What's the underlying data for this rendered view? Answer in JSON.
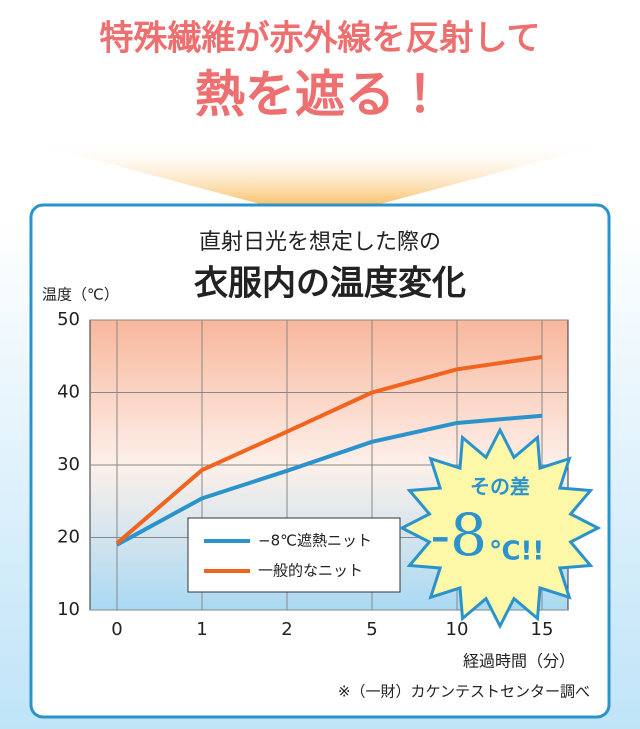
{
  "headline": [
    "特殊繊維が赤外線を反射して",
    "熱を遮る！"
  ],
  "chart_data": {
    "type": "line",
    "title": "直射日光を想定した際の",
    "subtitle": "衣服内の温度変化",
    "y_label": "温度（℃）",
    "x_label": "経過時間（分）",
    "note": "※（一財）カケンテストセンター調べ",
    "categories": [
      "0",
      "1",
      "2",
      "5",
      "10",
      "15"
    ],
    "series": [
      {
        "name": "−8℃遮熱ニット",
        "color": "#2a93cc",
        "values": [
          19,
          25.4,
          29.2,
          33.2,
          35.8,
          36.8
        ]
      },
      {
        "name": "一般的なニット",
        "color": "#f0641e",
        "values": [
          19.2,
          29.3,
          34.6,
          40,
          43.2,
          44.9
        ]
      }
    ],
    "ylim": [
      10,
      50
    ],
    "yticks": [
      10,
      20,
      30,
      40,
      50
    ],
    "grid": true,
    "annotation": {
      "label": "その差",
      "value": "-8",
      "unit": "℃!!"
    }
  }
}
